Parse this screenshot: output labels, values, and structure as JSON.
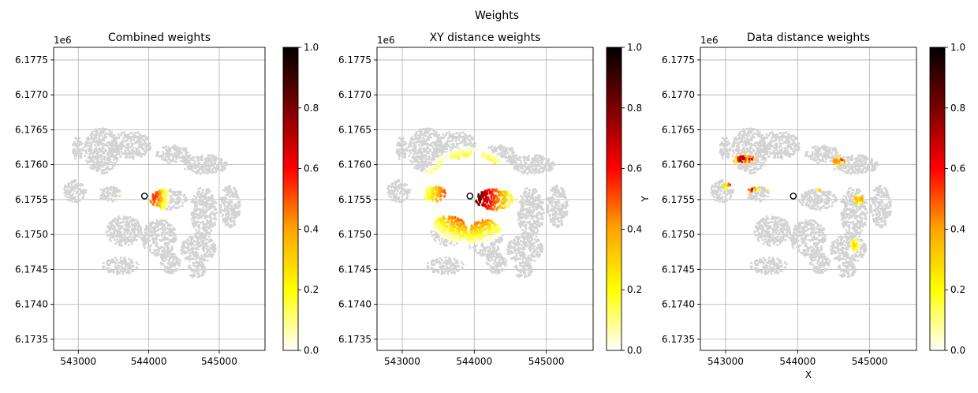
{
  "figure": {
    "suptitle": "Weights"
  },
  "chart_data": [
    {
      "type": "scatter",
      "title": "Combined weights",
      "xlabel": "",
      "ylabel": "",
      "xlim": [
        542650,
        545650
      ],
      "ylim": [
        6173340,
        6177680
      ],
      "y_offset_text": "1e6",
      "xticks": [
        543000,
        544000,
        545000
      ],
      "xtick_labels": [
        "543000",
        "544000",
        "545000"
      ],
      "yticks": [
        6173500,
        6174000,
        6174500,
        6175000,
        6175500,
        6176000,
        6176500,
        6177000,
        6177500
      ],
      "ytick_labels": [
        "6.1735",
        "6.1740",
        "6.1745",
        "6.1750",
        "6.1755",
        "6.1760",
        "6.1765",
        "6.1770",
        "6.1775"
      ],
      "grid": true,
      "weight_pattern": "combined",
      "target_point": {
        "x": 543940,
        "y": 6175550
      },
      "colorbar": {
        "cmap": "hot_r",
        "range": [
          0,
          1
        ],
        "ticks": [
          0.0,
          0.2,
          0.4,
          0.6,
          0.8,
          1.0
        ],
        "tick_labels": [
          "0.0",
          "0.2",
          "0.4",
          "0.6",
          "0.8",
          "1.0"
        ],
        "label": ""
      }
    },
    {
      "type": "scatter",
      "title": "XY distance weights",
      "xlabel": "",
      "ylabel": "",
      "xlim": [
        542650,
        545650
      ],
      "ylim": [
        6173340,
        6177680
      ],
      "y_offset_text": "1e6",
      "xticks": [
        543000,
        544000,
        545000
      ],
      "xtick_labels": [
        "543000",
        "544000",
        "545000"
      ],
      "yticks": [
        6173500,
        6174000,
        6174500,
        6175000,
        6175500,
        6176000,
        6176500,
        6177000,
        6177500
      ],
      "ytick_labels": [
        "6.1735",
        "6.1740",
        "6.1745",
        "6.1750",
        "6.1755",
        "6.1760",
        "6.1765",
        "6.1770",
        "6.1775"
      ],
      "grid": true,
      "weight_pattern": "xy",
      "target_point": {
        "x": 543940,
        "y": 6175550
      },
      "colorbar": {
        "cmap": "hot_r",
        "range": [
          0,
          1
        ],
        "ticks": [
          0.0,
          0.2,
          0.4,
          0.6,
          0.8,
          1.0
        ],
        "tick_labels": [
          "0.0",
          "0.2",
          "0.4",
          "0.6",
          "0.8",
          "1.0"
        ],
        "label": "Y"
      }
    },
    {
      "type": "scatter",
      "title": "Data distance weights",
      "xlabel": "X",
      "ylabel": "",
      "xlim": [
        542650,
        545650
      ],
      "ylim": [
        6173340,
        6177680
      ],
      "y_offset_text": "1e6",
      "xticks": [
        543000,
        544000,
        545000
      ],
      "xtick_labels": [
        "543000",
        "544000",
        "545000"
      ],
      "yticks": [
        6173500,
        6174000,
        6174500,
        6175000,
        6175500,
        6176000,
        6176500,
        6177000,
        6177500
      ],
      "ytick_labels": [
        "6.1735",
        "6.1740",
        "6.1745",
        "6.1750",
        "6.1755",
        "6.1760",
        "6.1765",
        "6.1770",
        "6.1775"
      ],
      "grid": true,
      "weight_pattern": "data",
      "target_point": {
        "x": 543940,
        "y": 6175550
      },
      "colorbar": {
        "cmap": "hot_r",
        "range": [
          0,
          1
        ],
        "ticks": [
          0.0,
          0.2,
          0.4,
          0.6,
          0.8,
          1.0
        ],
        "tick_labels": [
          "0.0",
          "0.2",
          "0.4",
          "0.6",
          "0.8",
          "1.0"
        ],
        "label": ""
      }
    }
  ],
  "colors": {
    "background_points": "#d3d3d3",
    "grid": "#b0b0b0",
    "cmap_stops": [
      "#ffffff",
      "#ffff00",
      "#ffa500",
      "#ff0000",
      "#7a0000",
      "#000000"
    ]
  }
}
